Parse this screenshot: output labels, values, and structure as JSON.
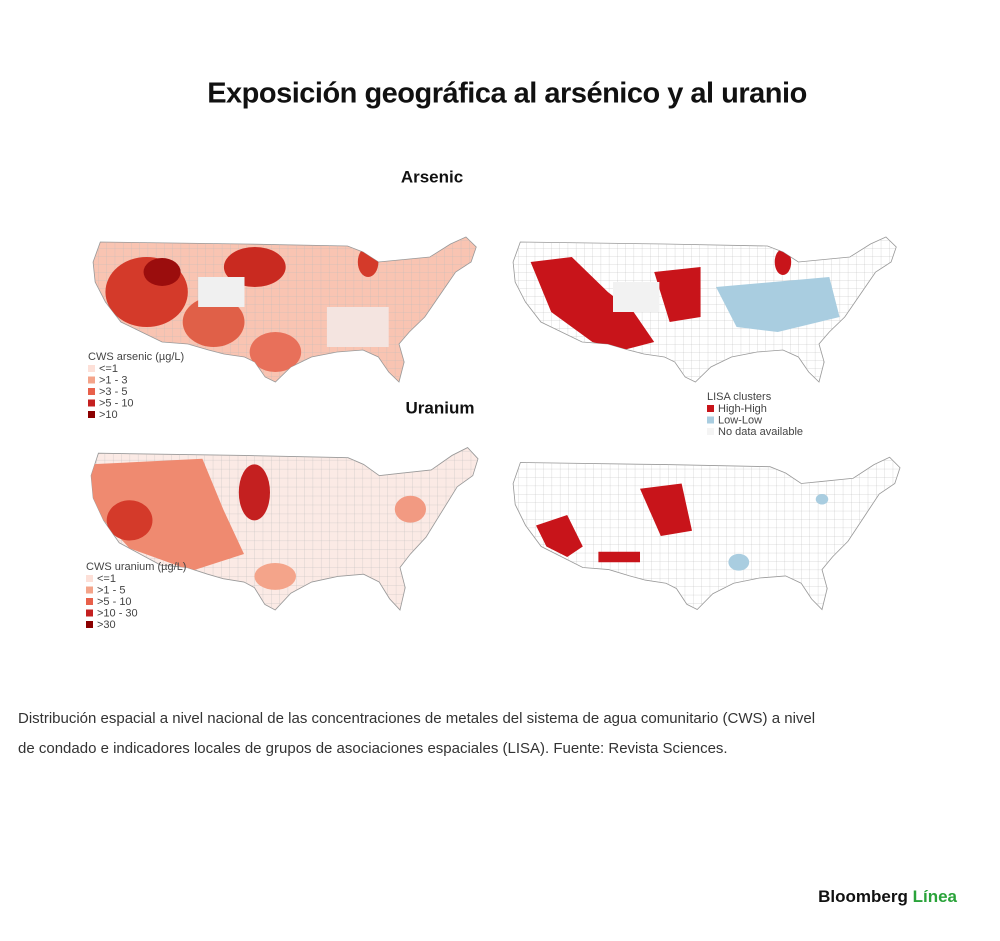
{
  "title": "Exposición geográfica al arsénico y al uranio",
  "panels": [
    {
      "heading": "Arsenic",
      "legend": {
        "title": "CWS arsenic (µg/L)",
        "items": [
          "<=1",
          ">1 - 3",
          ">3 - 5",
          ">5 - 10",
          ">10"
        ]
      }
    },
    {
      "heading": "Uranium",
      "legend": {
        "title": "CWS uranium (µg/L)",
        "items": [
          "<=1",
          ">1 - 5",
          ">5 - 10",
          ">10 - 30",
          ">30"
        ]
      }
    }
  ],
  "lisa_legend": {
    "title": "LISA clusters",
    "items": [
      "High-High",
      "Low-Low",
      "No data available"
    ]
  },
  "caption": [
    "Distribución espacial a nivel nacional de las concentraciones de metales del sistema de agua comunitario (CWS) a nivel",
    "de condado e indicadores locales de grupos de asociaciones espaciales (LISA). Fuente: Revista Sciences."
  ],
  "brand": {
    "name": "Bloomberg",
    "accent": "Línea"
  }
}
